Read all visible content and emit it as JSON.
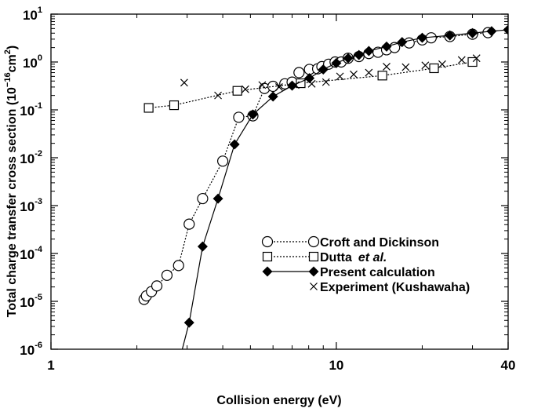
{
  "chart_data": {
    "type": "line",
    "title": "",
    "xlabel": "Collision energy (eV)",
    "ylabel_main": "Total charge transfer cross section (10",
    "ylabel_exp": "−16",
    "ylabel_unit": "cm",
    "ylabel_unit_exp": "2",
    "ylabel_close": ")",
    "x_scale": "log",
    "y_scale": "log",
    "xlim": [
      1,
      40
    ],
    "ylim": [
      1e-06,
      10
    ],
    "x_ticks": [
      {
        "value": 1,
        "label": "1"
      },
      {
        "value": 10,
        "label": "10"
      },
      {
        "value": 40,
        "label": "40"
      }
    ],
    "y_ticks": [
      {
        "value": 1e-06,
        "base": "10",
        "exp": "-6"
      },
      {
        "value": 1e-05,
        "base": "10",
        "exp": "-5"
      },
      {
        "value": 0.0001,
        "base": "10",
        "exp": "-4"
      },
      {
        "value": 0.001,
        "base": "10",
        "exp": "-3"
      },
      {
        "value": 0.01,
        "base": "10",
        "exp": "-2"
      },
      {
        "value": 0.1,
        "base": "10",
        "exp": "-1"
      },
      {
        "value": 1,
        "base": "10",
        "exp": "0"
      },
      {
        "value": 10,
        "base": "10",
        "exp": "1"
      }
    ],
    "grid": false,
    "legend_position": "lower-right",
    "series": [
      {
        "name": "Croft and Dickinson",
        "marker": "circle",
        "line": "dotted",
        "color": "#000000",
        "x": [
          2.12,
          2.16,
          2.25,
          2.35,
          2.55,
          2.8,
          3.05,
          3.4,
          4.0,
          4.55,
          5.1,
          5.6,
          6.0,
          6.6,
          7.0,
          7.4,
          8.05,
          8.6,
          8.9,
          9.4,
          9.9,
          10.4,
          11.0,
          12.0,
          13.0,
          14.0,
          15.0,
          16.0,
          18.0,
          20.0,
          21.5,
          25.0,
          30.0,
          34.0
        ],
        "y": [
          1.1e-05,
          1.3e-05,
          1.6e-05,
          2.1e-05,
          3.5e-05,
          5.6e-05,
          0.00041,
          0.0014,
          0.0085,
          0.07,
          0.075,
          0.28,
          0.31,
          0.35,
          0.38,
          0.6,
          0.7,
          0.72,
          0.8,
          0.9,
          1.0,
          1.0,
          1.2,
          1.3,
          1.5,
          1.6,
          1.8,
          2.0,
          2.5,
          2.9,
          3.2,
          3.4,
          3.8,
          4.1
        ]
      },
      {
        "name": "Dutta",
        "name_suffix": "et al.",
        "marker": "square",
        "line": "dotted",
        "color": "#000000",
        "x": [
          2.2,
          2.7,
          4.5,
          7.5,
          14.5,
          22.0,
          30.0
        ],
        "y": [
          0.11,
          0.125,
          0.25,
          0.36,
          0.52,
          0.74,
          1.0
        ]
      },
      {
        "name": "Present calculation",
        "marker": "diamond",
        "line": "solid",
        "color": "#000000",
        "x": [
          2.8,
          3.05,
          3.4,
          3.85,
          4.4,
          5.1,
          6.0,
          7.0,
          8.05,
          9.0,
          10.0,
          11.0,
          12.0,
          13.0,
          15.0,
          17.0,
          20.0,
          25.0,
          30.0,
          35.0,
          40.0
        ],
        "y": [
          5e-07,
          3.6e-06,
          0.00014,
          0.0014,
          0.019,
          0.08,
          0.19,
          0.32,
          0.46,
          0.7,
          0.95,
          1.2,
          1.4,
          1.7,
          2.1,
          2.6,
          3.2,
          3.6,
          4.0,
          4.4,
          4.7
        ]
      },
      {
        "name": "Experiment (Kushawaha)",
        "marker": "x",
        "line": "none",
        "color": "#000000",
        "x": [
          2.93,
          3.85,
          4.8,
          5.5,
          6.3,
          7.2,
          8.2,
          9.2,
          10.3,
          11.5,
          13.0,
          15.0,
          17.5,
          20.5,
          23.5,
          27.5,
          31.0
        ],
        "y": [
          0.37,
          0.2,
          0.27,
          0.33,
          0.3,
          0.33,
          0.35,
          0.38,
          0.5,
          0.55,
          0.6,
          0.8,
          0.78,
          0.85,
          0.9,
          1.1,
          1.2
        ]
      }
    ]
  }
}
